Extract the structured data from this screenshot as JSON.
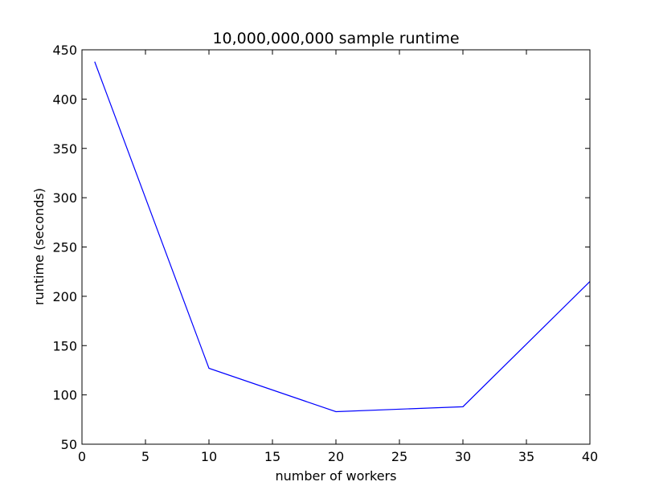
{
  "chart_data": {
    "type": "line",
    "title": "10,000,000,000 sample runtime",
    "xlabel": "number of workers",
    "ylabel": "runtime (seconds)",
    "xlim": [
      0,
      40
    ],
    "ylim": [
      50,
      450
    ],
    "xticks": [
      0,
      5,
      10,
      15,
      20,
      25,
      30,
      35,
      40
    ],
    "yticks": [
      50,
      100,
      150,
      200,
      250,
      300,
      350,
      400,
      450
    ],
    "grid": false,
    "series": [
      {
        "color": "#0000ff",
        "x": [
          1,
          10,
          20,
          30,
          40
        ],
        "y": [
          438,
          127,
          83,
          88,
          215
        ]
      }
    ]
  }
}
